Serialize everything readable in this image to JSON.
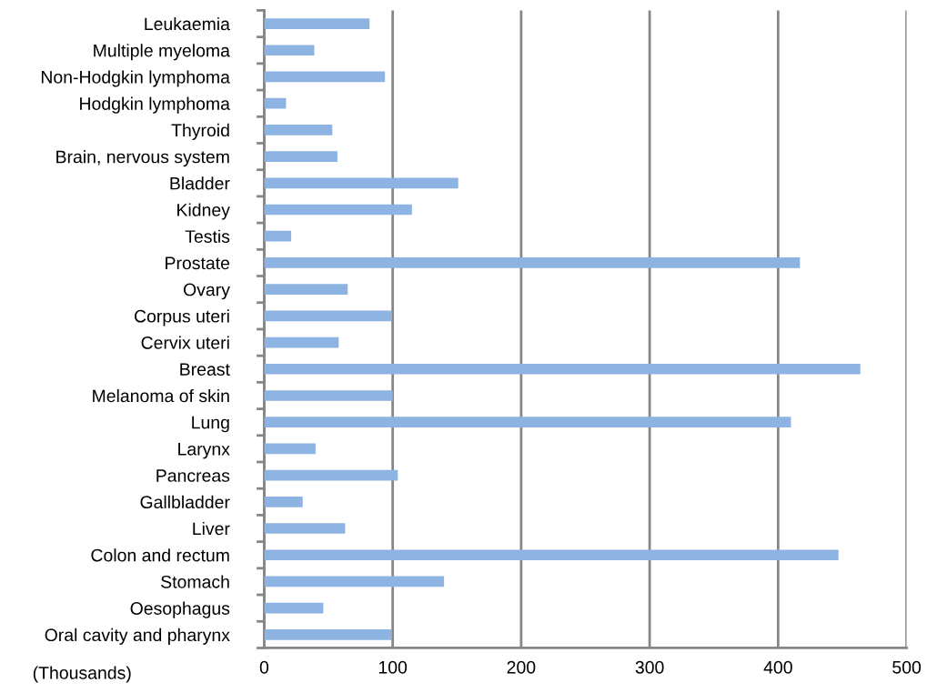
{
  "chart_data": {
    "type": "bar",
    "orientation": "horizontal",
    "categories": [
      "Leukaemia",
      "Multiple myeloma",
      "Non-Hodgkin lymphoma",
      "Hodgkin lymphoma",
      "Thyroid",
      "Brain, nervous system",
      "Bladder",
      "Kidney",
      "Testis",
      "Prostate",
      "Ovary",
      "Corpus uteri",
      "Cervix uteri",
      "Breast",
      "Melanoma of skin",
      "Lung",
      "Larynx",
      "Pancreas",
      "Gallbladder",
      "Liver",
      "Colon and rectum",
      "Stomach",
      "Oesophagus",
      "Oral cavity and pharynx"
    ],
    "values": [
      82,
      39,
      94,
      17,
      53,
      57,
      151,
      115,
      21,
      417,
      65,
      99,
      58,
      464,
      100,
      410,
      40,
      104,
      30,
      63,
      447,
      140,
      46,
      99
    ],
    "color": "#8db3e2",
    "xlim": [
      0,
      500
    ],
    "xticks": [
      0,
      100,
      200,
      300,
      400,
      500
    ],
    "grid": "x",
    "annotations": [
      "(Thousands)"
    ]
  }
}
